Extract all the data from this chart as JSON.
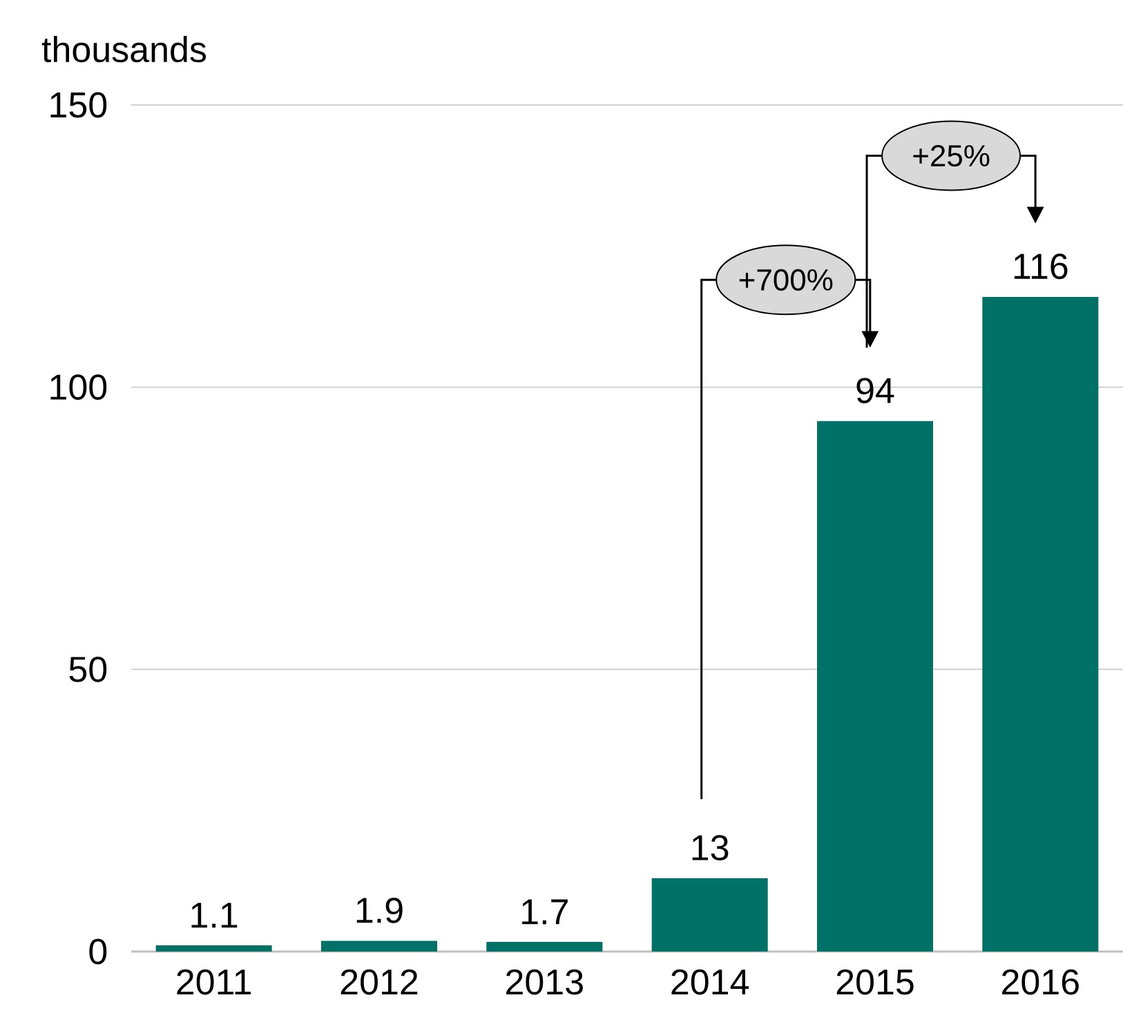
{
  "chart_data": {
    "type": "bar",
    "ylabel": "thousands",
    "categories": [
      "2011",
      "2012",
      "2013",
      "2014",
      "2015",
      "2016"
    ],
    "values": [
      1.1,
      1.9,
      1.7,
      13,
      94,
      116
    ],
    "color": "#007167",
    "ylim": [
      0,
      150
    ],
    "yticks": [
      0,
      50,
      100,
      150
    ],
    "grid": "y",
    "data_labels": true,
    "annotations": [
      "+700%",
      "+25%"
    ]
  }
}
